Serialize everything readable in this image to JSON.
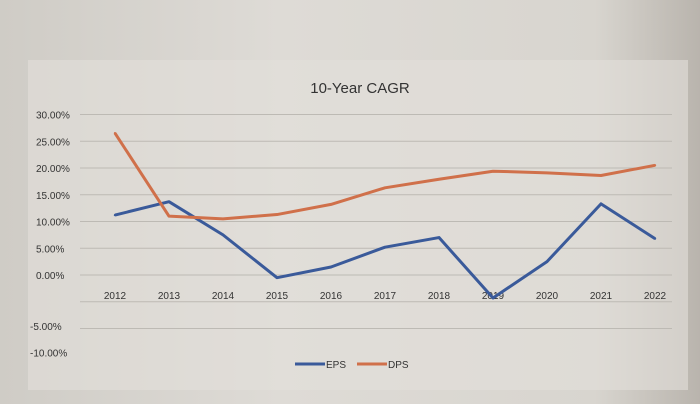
{
  "chart_data": {
    "type": "line",
    "title": "10-Year CAGR",
    "categories": [
      "2012",
      "2013",
      "2014",
      "2015",
      "2016",
      "2017",
      "2018",
      "2019",
      "2020",
      "2021",
      "2022"
    ],
    "series": [
      {
        "name": "EPS",
        "color": "#3a5a9a",
        "values": [
          11.2,
          13.7,
          7.5,
          -0.5,
          1.5,
          5.2,
          7.0,
          -4.3,
          2.5,
          13.3,
          6.8
        ]
      },
      {
        "name": "DPS",
        "color": "#d0704a",
        "values": [
          26.5,
          11.0,
          10.5,
          11.3,
          13.2,
          16.3,
          17.9,
          19.4,
          19.1,
          18.6,
          20.5
        ]
      }
    ],
    "y_ticks": [
      "30.00%",
      "25.00%",
      "20.00%",
      "15.00%",
      "10.00%",
      "5.00%",
      "0.00%",
      "-5.00%",
      "-10.00%"
    ],
    "ylim": [
      -10,
      30
    ],
    "xlabel": "",
    "ylabel": "",
    "grid": true,
    "legend": "bottom"
  }
}
